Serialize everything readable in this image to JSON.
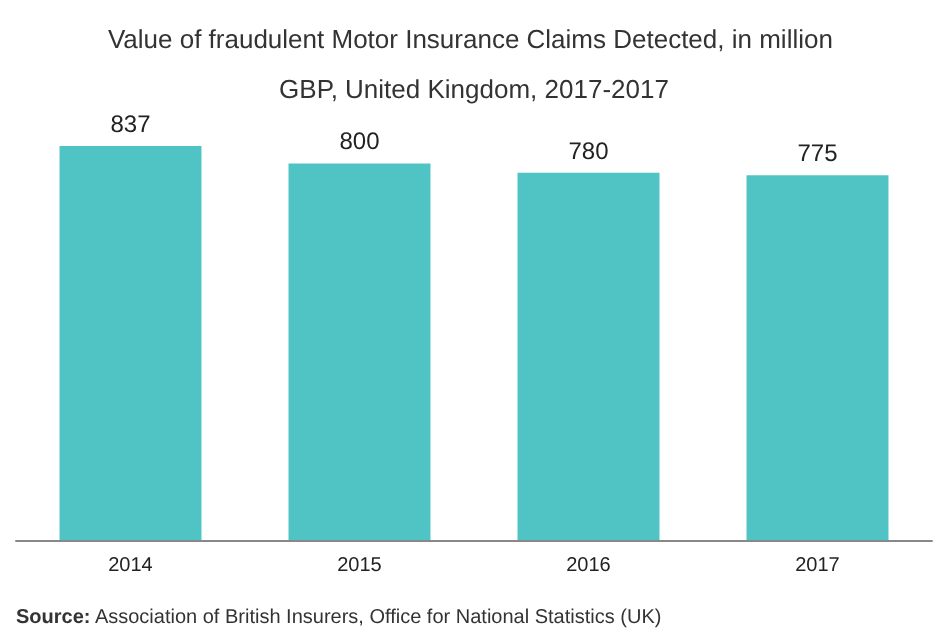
{
  "chart_data": {
    "type": "bar",
    "title": "Value of fraudulent Motor Insurance Claims Detected, in million GBP, United Kingdom, 2017-2017",
    "categories": [
      "2014",
      "2015",
      "2016",
      "2017"
    ],
    "values": [
      837,
      800,
      780,
      775
    ],
    "color": "#50c4c5",
    "data_labels": true,
    "annotations": [
      "Source: Association of British Insurers, Office for National Statistics (UK)"
    ]
  }
}
